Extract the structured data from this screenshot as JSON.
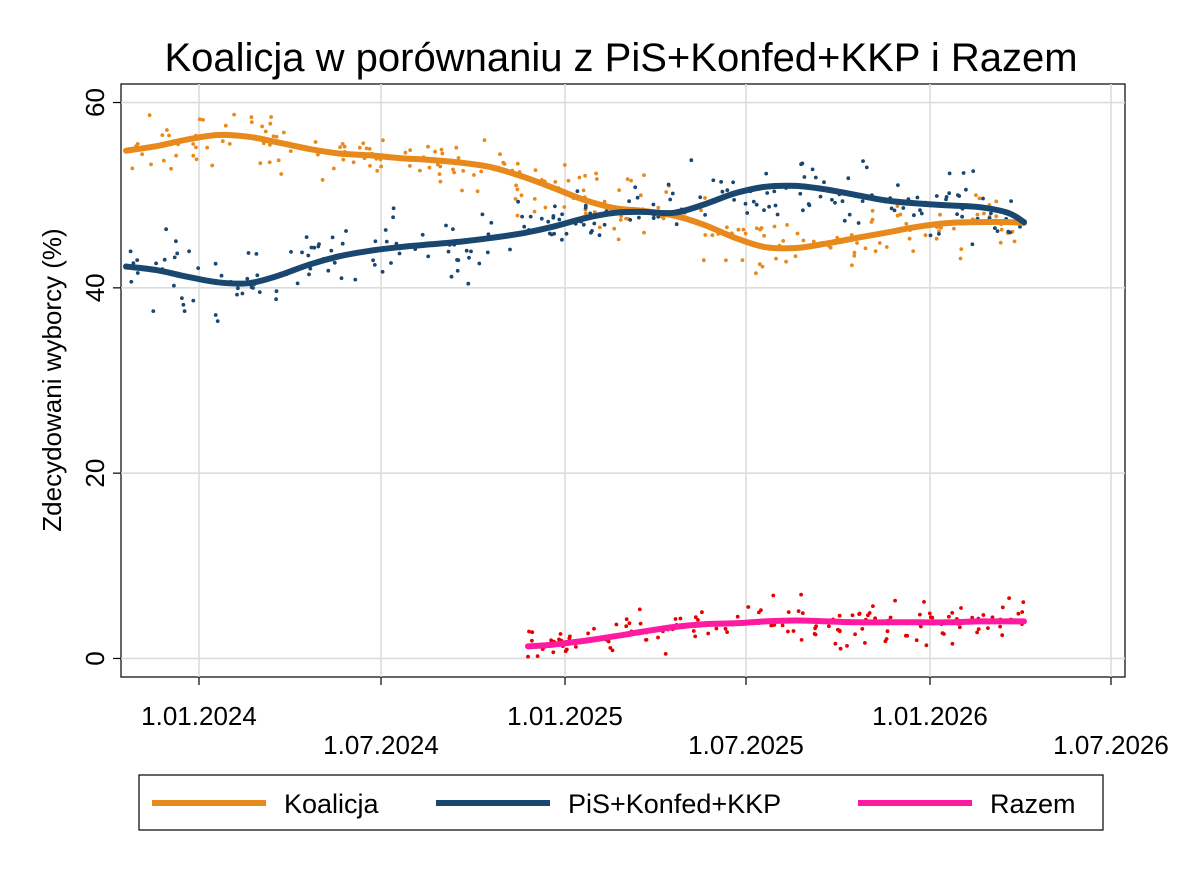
{
  "chart_data": {
    "type": "scatter",
    "title": "Koalicja w porównaniu z PiS+Konfed+KKP i Razem",
    "xlabel": "",
    "ylabel": "Zdecydowani wyborcy (%)",
    "x_type": "date",
    "xlim": [
      "2023-10-15",
      "2026-07-15"
    ],
    "ylim": [
      -2,
      62
    ],
    "x_ticks": [
      {
        "date": "2024-01-01",
        "label": "1.01.2024"
      },
      {
        "date": "2024-07-01",
        "label": "1.07.2024"
      },
      {
        "date": "2025-01-01",
        "label": "1.01.2025"
      },
      {
        "date": "2025-07-01",
        "label": "1.07.2025"
      },
      {
        "date": "2026-01-01",
        "label": "1.01.2026"
      },
      {
        "date": "2026-07-01",
        "label": "1.07.2026"
      }
    ],
    "y_ticks": [
      0,
      20,
      40,
      60
    ],
    "grid": true,
    "legend_position": "bottom",
    "series": [
      {
        "name": "Koalicja",
        "color": "#e8891c",
        "point_color": "#e8891c",
        "trend": [
          [
            "2023-10-20",
            54.8
          ],
          [
            "2023-11-20",
            55.3
          ],
          [
            "2023-12-20",
            56.0
          ],
          [
            "2024-01-20",
            56.5
          ],
          [
            "2024-02-20",
            56.3
          ],
          [
            "2024-03-20",
            55.7
          ],
          [
            "2024-04-20",
            55.0
          ],
          [
            "2024-05-20",
            54.5
          ],
          [
            "2024-06-20",
            54.3
          ],
          [
            "2024-07-20",
            54.0
          ],
          [
            "2024-08-20",
            53.8
          ],
          [
            "2024-09-20",
            53.5
          ],
          [
            "2024-10-20",
            53.0
          ],
          [
            "2024-11-20",
            52.0
          ],
          [
            "2024-12-20",
            50.8
          ],
          [
            "2025-01-20",
            49.5
          ],
          [
            "2025-02-20",
            48.6
          ],
          [
            "2025-03-20",
            48.3
          ],
          [
            "2025-04-20",
            47.8
          ],
          [
            "2025-05-20",
            46.8
          ],
          [
            "2025-06-20",
            45.4
          ],
          [
            "2025-07-20",
            44.4
          ],
          [
            "2025-08-20",
            44.3
          ],
          [
            "2025-09-20",
            44.8
          ],
          [
            "2025-10-20",
            45.4
          ],
          [
            "2025-11-20",
            46.0
          ],
          [
            "2025-12-20",
            46.6
          ],
          [
            "2026-01-20",
            47.0
          ],
          [
            "2026-02-20",
            47.1
          ],
          [
            "2026-03-20",
            47.1
          ],
          [
            "2026-04-05",
            47.0
          ]
        ]
      },
      {
        "name": "PiS+Konfed+KKP",
        "color": "#1a476f",
        "point_color": "#1a476f",
        "trend": [
          [
            "2023-10-20",
            42.3
          ],
          [
            "2023-11-20",
            41.9
          ],
          [
            "2023-12-20",
            41.2
          ],
          [
            "2024-01-20",
            40.6
          ],
          [
            "2024-02-20",
            40.5
          ],
          [
            "2024-03-20",
            41.3
          ],
          [
            "2024-04-20",
            42.5
          ],
          [
            "2024-05-20",
            43.4
          ],
          [
            "2024-06-20",
            44.0
          ],
          [
            "2024-07-20",
            44.4
          ],
          [
            "2024-08-20",
            44.7
          ],
          [
            "2024-09-20",
            45.0
          ],
          [
            "2024-10-20",
            45.4
          ],
          [
            "2024-11-20",
            45.9
          ],
          [
            "2024-12-20",
            46.6
          ],
          [
            "2025-01-20",
            47.5
          ],
          [
            "2025-02-20",
            48.1
          ],
          [
            "2025-03-20",
            48.2
          ],
          [
            "2025-04-20",
            48.1
          ],
          [
            "2025-05-20",
            49.0
          ],
          [
            "2025-06-20",
            50.2
          ],
          [
            "2025-07-20",
            50.9
          ],
          [
            "2025-08-20",
            51.0
          ],
          [
            "2025-09-20",
            50.6
          ],
          [
            "2025-10-20",
            50.0
          ],
          [
            "2025-11-20",
            49.4
          ],
          [
            "2025-12-20",
            49.1
          ],
          [
            "2026-01-20",
            48.9
          ],
          [
            "2026-02-20",
            48.7
          ],
          [
            "2026-03-20",
            48.1
          ],
          [
            "2026-04-05",
            47.1
          ]
        ]
      },
      {
        "name": "Razem",
        "color": "#ff1aa1",
        "point_color": "#e60000",
        "trend": [
          [
            "2024-11-25",
            1.3
          ],
          [
            "2024-12-20",
            1.5
          ],
          [
            "2025-01-20",
            1.9
          ],
          [
            "2025-02-20",
            2.4
          ],
          [
            "2025-03-20",
            2.9
          ],
          [
            "2025-04-20",
            3.4
          ],
          [
            "2025-05-20",
            3.7
          ],
          [
            "2025-06-20",
            3.8
          ],
          [
            "2025-07-20",
            4.0
          ],
          [
            "2025-08-20",
            4.1
          ],
          [
            "2025-09-20",
            4.0
          ],
          [
            "2025-10-20",
            3.9
          ],
          [
            "2025-11-20",
            3.9
          ],
          [
            "2025-12-20",
            3.9
          ],
          [
            "2026-01-20",
            3.9
          ],
          [
            "2026-02-20",
            4.0
          ],
          [
            "2026-03-20",
            4.0
          ],
          [
            "2026-04-05",
            4.0
          ]
        ]
      }
    ],
    "poll_points": {
      "x_range": [
        "2023-10-20",
        "2026-04-05"
      ],
      "razem_start": "2024-11-25",
      "approx_count_per_series": 240,
      "spread_pct": [
        1.8,
        1.8,
        1.1
      ]
    }
  }
}
